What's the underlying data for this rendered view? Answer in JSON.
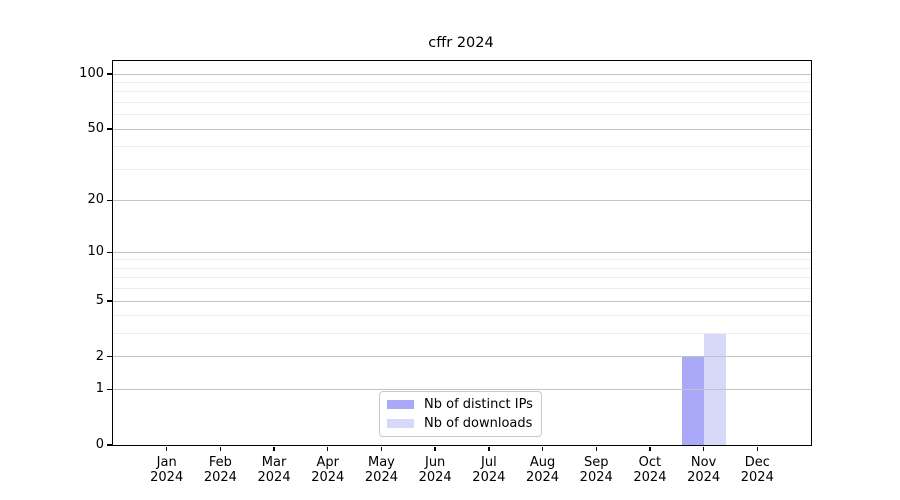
{
  "title": "cffr 2024",
  "chart_data": {
    "type": "bar",
    "title": "cffr 2024",
    "categories": [
      "Jan",
      "Feb",
      "Mar",
      "Apr",
      "May",
      "Jun",
      "Jul",
      "Aug",
      "Sep",
      "Oct",
      "Nov",
      "Dec"
    ],
    "year_label": "2024",
    "series": [
      {
        "name": "Nb of distinct IPs",
        "color": "#a9a9f8",
        "values": [
          0,
          0,
          0,
          0,
          0,
          0,
          0,
          0,
          0,
          0,
          2,
          0
        ]
      },
      {
        "name": "Nb of downloads",
        "color": "#d8d8f8",
        "values": [
          0,
          0,
          0,
          0,
          0,
          0,
          0,
          0,
          0,
          0,
          3,
          0
        ]
      }
    ],
    "y_axis": {
      "scale": "log1p",
      "major_ticks": [
        0,
        1,
        2,
        5,
        10,
        20,
        50,
        100
      ],
      "minor_gridlines": [
        3,
        4,
        6,
        7,
        8,
        9,
        30,
        40,
        60,
        70,
        80,
        90
      ],
      "max": 118
    },
    "x_axis": {
      "tick_label_lines": 2
    },
    "legend": {
      "position": "bottom-center",
      "entries": [
        "Nb of distinct IPs",
        "Nb of downloads"
      ]
    },
    "grid": true
  },
  "colors": {
    "background": "#ffffff",
    "axis": "#000000",
    "grid_major": "#c3c3c3",
    "grid_minor": "#ececec",
    "bar_distinct_ips": "#a9a9f8",
    "bar_downloads": "#d8d8f8",
    "legend_border": "#c9c9c9",
    "text": "#000000"
  }
}
